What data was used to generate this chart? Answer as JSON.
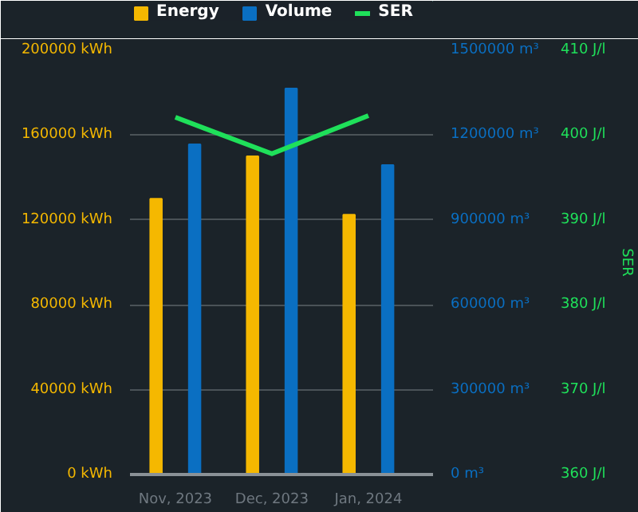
{
  "chart_data": {
    "type": "bar",
    "categories": [
      "Nov, 2023",
      "Dec, 2023",
      "Jan, 2024"
    ],
    "series": [
      {
        "name": "Energy",
        "color": "#f5b800",
        "values": [
          130000,
          150000,
          122500
        ]
      },
      {
        "name": "Volume",
        "color": "#0a6fc2",
        "values": [
          1167000,
          1365000,
          1094000
        ],
        "axis": "y2"
      },
      {
        "name": "SER",
        "color": "#1fe05a",
        "type": "line",
        "values": [
          402.1,
          397.8,
          402.3
        ],
        "axis": "y3"
      }
    ],
    "ylim": [
      0,
      200000
    ],
    "yticks": [
      {
        "value": 0,
        "label": "0 kWh"
      },
      {
        "value": 40000,
        "label": "40000 kWh"
      },
      {
        "value": 80000,
        "label": "80000 kWh"
      },
      {
        "value": 120000,
        "label": "120000 kWh"
      },
      {
        "value": 160000,
        "label": "160000 kWh"
      },
      {
        "value": 200000,
        "label": "200000 kWh"
      }
    ],
    "y2lim": [
      0,
      1500000
    ],
    "y2ticks": [
      {
        "value": 0,
        "label": "0 m³"
      },
      {
        "value": 300000,
        "label": "300000 m³"
      },
      {
        "value": 600000,
        "label": "600000 m³"
      },
      {
        "value": 900000,
        "label": "900000 m³"
      },
      {
        "value": 1200000,
        "label": "1200000 m³"
      },
      {
        "value": 1500000,
        "label": "1500000 m³"
      }
    ],
    "y3lim": [
      360,
      410
    ],
    "y3ticks": [
      {
        "value": 360,
        "label": "360 J/l"
      },
      {
        "value": 370,
        "label": "370 J/l"
      },
      {
        "value": 380,
        "label": "380 J/l"
      },
      {
        "value": 390,
        "label": "390 J/l"
      },
      {
        "value": 400,
        "label": "400 J/l"
      },
      {
        "value": 410,
        "label": "410 J/l"
      }
    ],
    "y3label": "SER",
    "grid": "y",
    "legend": "top left"
  }
}
